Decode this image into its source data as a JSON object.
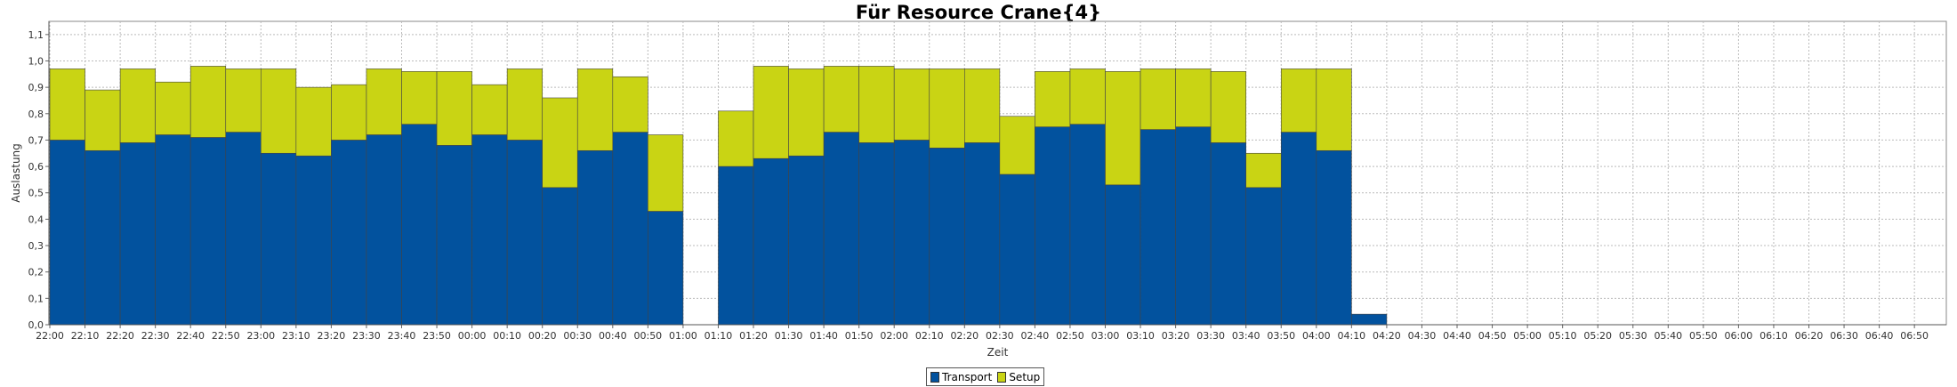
{
  "chart_data": {
    "type": "bar",
    "stacked": true,
    "title": "Für Resource Crane{4}",
    "xlabel": "Zeit",
    "ylabel": "Auslastung",
    "ylim": [
      0,
      1.15
    ],
    "y_ticks": [
      "0,0",
      "0,1",
      "0,2",
      "0,3",
      "0,4",
      "0,5",
      "0,6",
      "0,7",
      "0,8",
      "0,9",
      "1,0",
      "1,1"
    ],
    "grid": true,
    "legend_position": "bottom-center",
    "categories": [
      "22:00",
      "22:10",
      "22:20",
      "22:30",
      "22:40",
      "22:50",
      "23:00",
      "23:10",
      "23:20",
      "23:30",
      "23:40",
      "23:50",
      "00:00",
      "00:10",
      "00:20",
      "00:30",
      "00:40",
      "00:50",
      "01:00",
      "01:10",
      "01:20",
      "01:30",
      "01:40",
      "01:50",
      "02:00",
      "02:10",
      "02:20",
      "02:30",
      "02:40",
      "02:50",
      "03:00",
      "03:10",
      "03:20",
      "03:30",
      "03:40",
      "03:50",
      "04:00",
      "04:10",
      "04:20",
      "04:30",
      "04:40",
      "04:50",
      "05:00",
      "05:10",
      "05:20",
      "05:30",
      "05:40",
      "05:50",
      "06:00",
      "06:10",
      "06:20",
      "06:30",
      "06:40",
      "06:50"
    ],
    "series": [
      {
        "name": "Transport",
        "color": "#02529e",
        "values": [
          0.7,
          0.66,
          0.69,
          0.72,
          0.71,
          0.73,
          0.65,
          0.64,
          0.7,
          0.72,
          0.76,
          0.68,
          0.72,
          0.7,
          0.52,
          0.66,
          0.73,
          0.43,
          0,
          0.6,
          0.63,
          0.64,
          0.73,
          0.69,
          0.7,
          0.67,
          0.69,
          0.57,
          0.75,
          0.76,
          0.53,
          0.74,
          0.75,
          0.69,
          0.52,
          0.73,
          0.66,
          0.04,
          0,
          0,
          0,
          0,
          0,
          0,
          0,
          0,
          0,
          0,
          0,
          0,
          0,
          0,
          0,
          0
        ]
      },
      {
        "name": "Setup",
        "color": "#c9d414",
        "values": [
          0.27,
          0.23,
          0.28,
          0.2,
          0.27,
          0.24,
          0.32,
          0.26,
          0.21,
          0.25,
          0.2,
          0.28,
          0.19,
          0.27,
          0.34,
          0.31,
          0.21,
          0.29,
          0,
          0.21,
          0.35,
          0.33,
          0.25,
          0.29,
          0.27,
          0.3,
          0.28,
          0.22,
          0.21,
          0.21,
          0.43,
          0.23,
          0.22,
          0.27,
          0.13,
          0.24,
          0.31,
          0,
          0,
          0,
          0,
          0,
          0,
          0,
          0,
          0,
          0,
          0,
          0,
          0,
          0,
          0,
          0,
          0
        ]
      }
    ]
  },
  "colors": {
    "plot_background": "#ffffff",
    "grid": "#bbbbbb",
    "bar_border": "#444444"
  }
}
